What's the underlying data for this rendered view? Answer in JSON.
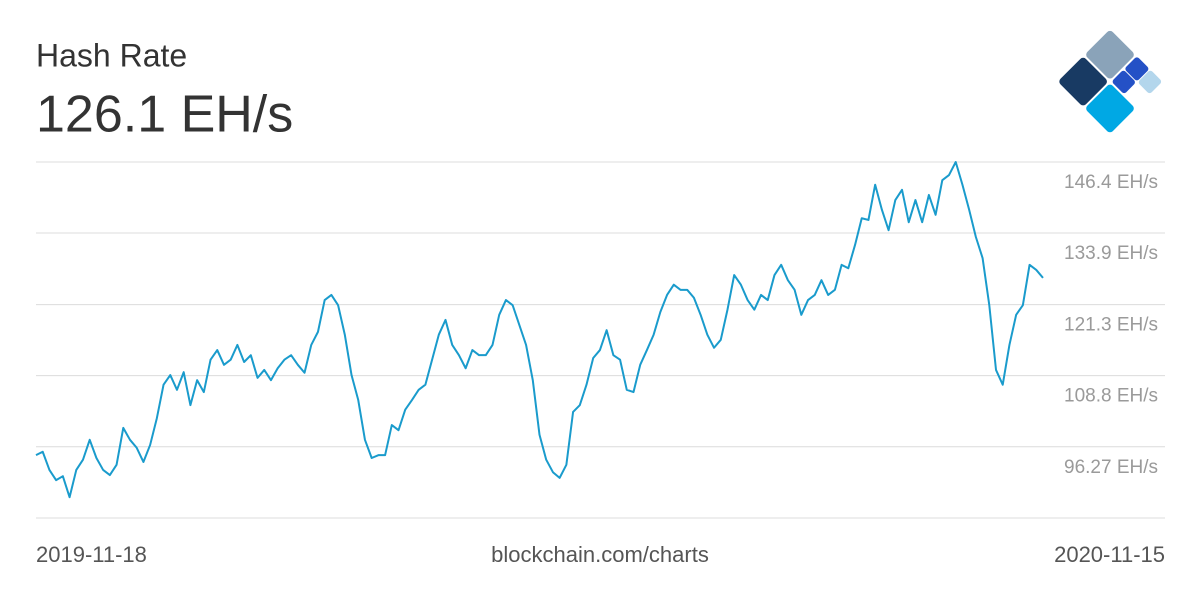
{
  "chart_data": {
    "type": "line",
    "title": "Hash Rate",
    "current_value": "126.1 EH/s",
    "source": "blockchain.com/charts",
    "x_labels": [
      "2019-11-18",
      "2020-11-15"
    ],
    "series": [
      {
        "color": "#1a9bcc",
        "values": [
          94.8,
          95.4,
          92.2,
          90.4,
          91.1,
          87.4,
          92.2,
          94.0,
          97.5,
          94.3,
          92.2,
          91.3,
          93.1,
          99.6,
          97.5,
          96.1,
          93.6,
          96.6,
          101.3,
          107.2,
          108.9,
          106.3,
          109.4,
          103.6,
          108.0,
          105.9,
          111.6,
          113.3,
          110.7,
          111.6,
          114.2,
          111.2,
          112.4,
          108.4,
          109.8,
          108.0,
          110.1,
          111.6,
          112.4,
          110.7,
          109.3,
          114.2,
          116.5,
          122.1,
          123.0,
          121.2,
          116.0,
          108.9,
          104.5,
          97.5,
          94.3,
          94.8,
          94.8,
          100.1,
          99.2,
          102.8,
          104.5,
          106.3,
          107.2,
          111.6,
          116.0,
          118.6,
          114.2,
          112.4,
          110.1,
          113.3,
          112.4,
          112.4,
          114.2,
          119.5,
          122.1,
          121.2,
          117.7,
          114.2,
          108.0,
          98.4,
          94.0,
          91.8,
          90.8,
          93.1,
          102.4,
          103.6,
          107.2,
          111.9,
          113.3,
          116.8,
          112.4,
          111.6,
          106.3,
          105.9,
          110.7,
          113.3,
          116.0,
          120.0,
          123.0,
          124.8,
          123.9,
          123.9,
          122.5,
          119.5,
          116.0,
          113.7,
          115.1,
          120.4,
          126.5,
          124.8,
          122.1,
          120.4,
          123.0,
          122.1,
          126.5,
          128.3,
          125.6,
          123.9,
          119.5,
          122.1,
          123.0,
          125.6,
          123.0,
          123.9,
          128.3,
          127.7,
          131.8,
          136.5,
          136.2,
          142.4,
          138.0,
          134.4,
          139.7,
          141.5,
          135.8,
          139.7,
          135.8,
          140.6,
          137.1,
          143.2,
          144.1,
          146.4,
          142.4,
          138.0,
          133.2,
          129.5,
          121.2,
          109.8,
          107.2,
          114.2,
          119.5,
          121.2,
          128.3,
          127.4,
          126.0
        ]
      }
    ],
    "ylim": [
      83.74,
      146.4
    ],
    "yticks": [
      {
        "value": 96.27,
        "label": "96.27 EH/s"
      },
      {
        "value": 108.8,
        "label": "108.8 EH/s"
      },
      {
        "value": 121.3,
        "label": "121.3 EH/s"
      },
      {
        "value": 133.9,
        "label": "133.9 EH/s"
      },
      {
        "value": 146.4,
        "label": "146.4 EH/s"
      }
    ],
    "grid": true
  }
}
